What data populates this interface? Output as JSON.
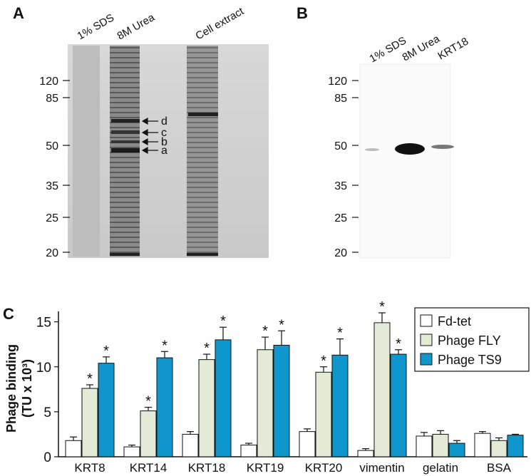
{
  "panels": {
    "a": {
      "label": "A",
      "lanes": [
        "1% SDS",
        "8M Urea",
        "Cell extract"
      ],
      "markers": [
        "120",
        "85",
        "50",
        "35",
        "25",
        "20"
      ],
      "arrows": [
        "d",
        "c",
        "b",
        "a"
      ]
    },
    "b": {
      "label": "B",
      "lanes": [
        "1% SDS",
        "8M Urea",
        "KRT18"
      ],
      "markers": [
        "120",
        "85",
        "50",
        "35",
        "25",
        "20"
      ]
    }
  },
  "chart_data": {
    "type": "bar",
    "panel_label": "C",
    "y_label": [
      "Phage binding",
      "(TU x 10³)"
    ],
    "categories": [
      "KRT8",
      "KRT14",
      "KRT18",
      "KRT19",
      "KRT20",
      "vimentin",
      "gelatin",
      "BSA"
    ],
    "series": [
      {
        "name": "Fd-tet",
        "color": "#ffffff",
        "values": [
          1.8,
          1.1,
          2.5,
          1.3,
          2.8,
          0.7,
          2.3,
          2.6
        ],
        "errors": [
          0.4,
          0.2,
          0.3,
          0.2,
          0.3,
          0.2,
          0.4,
          0.2
        ],
        "significance": [
          null,
          null,
          null,
          null,
          null,
          null,
          null,
          null
        ]
      },
      {
        "name": "Phage FLY",
        "color": "#e3ead6",
        "values": [
          7.6,
          5.1,
          10.8,
          11.9,
          9.4,
          14.9,
          2.5,
          1.8
        ],
        "errors": [
          0.4,
          0.4,
          0.6,
          1.4,
          0.6,
          1.1,
          0.4,
          0.3
        ],
        "significance": [
          "*",
          "*",
          "*",
          "*",
          "*",
          "*",
          null,
          null
        ]
      },
      {
        "name": "Phage TS9",
        "color": "#0f96cc",
        "values": [
          10.4,
          11.0,
          13.0,
          12.4,
          11.3,
          11.4,
          1.5,
          2.4
        ],
        "errors": [
          0.7,
          0.7,
          1.4,
          1.6,
          1.8,
          0.5,
          0.3,
          0.1
        ],
        "significance": [
          "*",
          "*",
          "*",
          "*",
          "*",
          "*",
          null,
          null
        ]
      }
    ],
    "ylim": [
      0,
      16
    ],
    "yticks": [
      0,
      5,
      10,
      15
    ],
    "legend": "top-right"
  }
}
